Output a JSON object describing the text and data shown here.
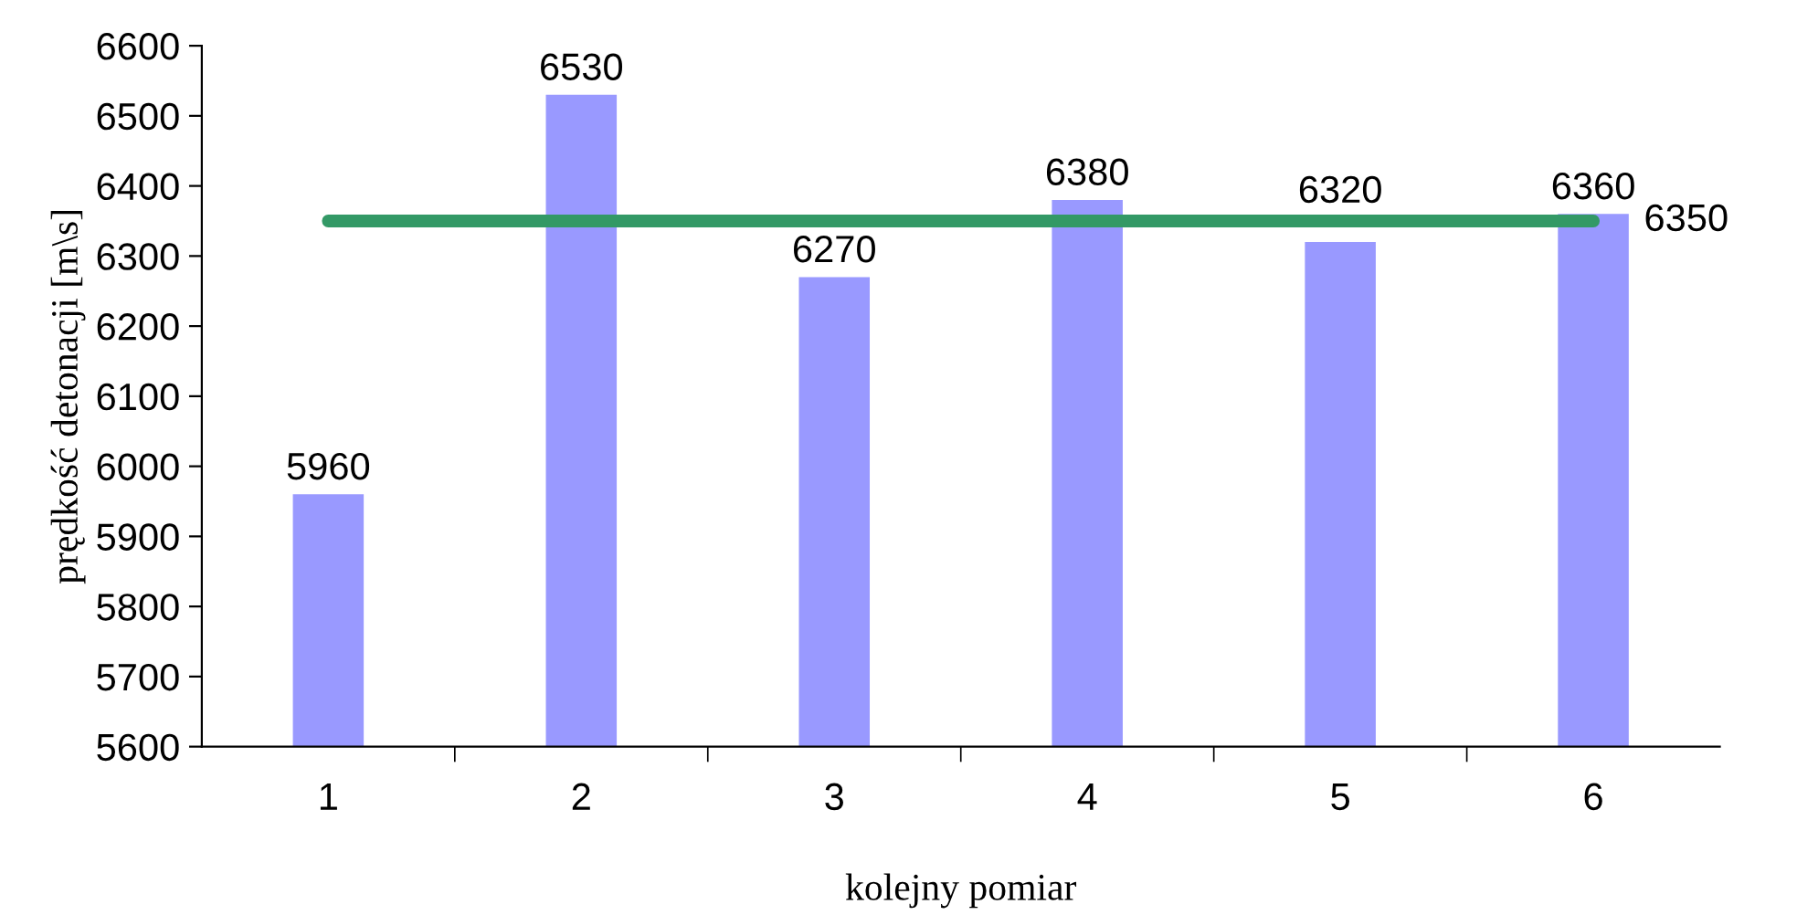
{
  "chart_data": {
    "type": "bar",
    "categories": [
      "1",
      "2",
      "3",
      "4",
      "5",
      "6"
    ],
    "xlabel": "kolejny pomiar",
    "ylabel": "prędkość detonacji [m\\s]",
    "ylim": [
      5600,
      6600
    ],
    "yticks": [
      5600,
      5700,
      5800,
      5900,
      6000,
      6100,
      6200,
      6300,
      6400,
      6500,
      6600
    ],
    "grid": false,
    "legend": false,
    "series": [
      {
        "color": "#9999ff",
        "values": [
          5960,
          6530,
          6270,
          6380,
          6320,
          6360
        ],
        "value_labels": [
          "5960",
          "6530",
          "6270",
          "6380",
          "6320",
          "6360"
        ]
      },
      {
        "type": "line",
        "color": "#339966",
        "values": [
          6350,
          6350,
          6350,
          6350,
          6350,
          6350
        ],
        "value_labels": [
          null,
          null,
          null,
          null,
          null,
          "6350"
        ]
      }
    ]
  }
}
